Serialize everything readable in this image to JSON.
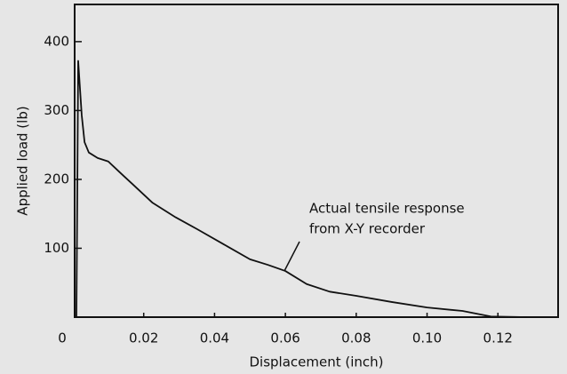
{
  "chart_data": {
    "type": "line",
    "xlabel": "Displacement (inch)",
    "ylabel": "Applied load (lb)",
    "annotation": [
      "Actual tensile response",
      "from X-Y recorder"
    ],
    "series": [
      {
        "color": "#111111",
        "x": [
          0.001,
          0.0012,
          0.0015,
          0.0025,
          0.0033,
          0.0045,
          0.007,
          0.01,
          0.0135,
          0.0175,
          0.0225,
          0.029,
          0.035,
          0.0425,
          0.05,
          0.055,
          0.06,
          0.066,
          0.0725,
          0.08,
          0.09,
          0.1,
          0.11,
          0.118,
          0.128
        ],
        "values": [
          0,
          140,
          372,
          293,
          254,
          239,
          231,
          226,
          209,
          190,
          166,
          145,
          128,
          106,
          84,
          76,
          67,
          48,
          37,
          31,
          22,
          14,
          9,
          1,
          0
        ]
      }
    ],
    "xlim": [
      0,
      0.137
    ],
    "ylim": [
      0,
      454
    ],
    "xticks": [
      0,
      0.02,
      0.04,
      0.06,
      0.08,
      {
        "value": 0.1,
        "label": "0.10"
      },
      0.12
    ],
    "yticks": [
      100,
      200,
      300,
      400
    ]
  }
}
